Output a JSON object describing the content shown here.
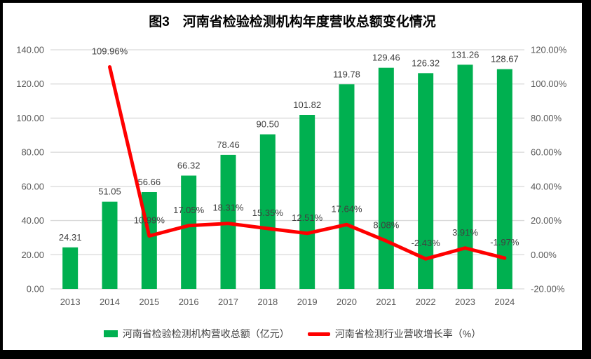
{
  "chart_data": {
    "type": "bar+line",
    "title": "图3　河南省检验检测机构年度营收总额变化情况",
    "categories": [
      "2013",
      "2014",
      "2015",
      "2016",
      "2017",
      "2018",
      "2019",
      "2020",
      "2021",
      "2022",
      "2023",
      "2024"
    ],
    "series": [
      {
        "name": "河南省检验检测机构营收总额（亿元）",
        "type": "bar",
        "axis": "left",
        "color": "#00B050",
        "values": [
          24.31,
          51.05,
          56.66,
          66.32,
          78.46,
          90.5,
          101.82,
          119.78,
          129.46,
          126.32,
          131.26,
          128.67
        ],
        "labels": [
          "24.31",
          "51.05",
          "56.66",
          "66.32",
          "78.46",
          "90.50",
          "101.82",
          "119.78",
          "129.46",
          "126.32",
          "131.26",
          "128.67"
        ]
      },
      {
        "name": "河南省检测行业营收增长率（%）",
        "type": "line",
        "axis": "right",
        "color": "#FF0000",
        "values": [
          null,
          109.96,
          10.99,
          17.05,
          18.31,
          15.35,
          12.51,
          17.64,
          8.08,
          -2.43,
          3.91,
          -1.97
        ],
        "labels": [
          null,
          "109.96%",
          "10.99%",
          "17.05%",
          "18.31%",
          "15.35%",
          "12.51%",
          "17.64%",
          "8.08%",
          "-2.43%",
          "3.91%",
          "-1.97%"
        ]
      }
    ],
    "left_axis": {
      "min": 0,
      "max": 140,
      "step": 20,
      "tick_values": [
        0,
        20,
        40,
        60,
        80,
        100,
        120,
        140
      ],
      "ticks": [
        "0.00",
        "20.00",
        "40.00",
        "60.00",
        "80.00",
        "100.00",
        "120.00",
        "140.00"
      ]
    },
    "right_axis": {
      "min": -20,
      "max": 120,
      "step": 20,
      "tick_values": [
        -20,
        0,
        20,
        40,
        60,
        80,
        100,
        120
      ],
      "ticks": [
        "-20.00%",
        "0.00%",
        "20.00%",
        "40.00%",
        "60.00%",
        "80.00%",
        "100.00%",
        "120.00%"
      ]
    },
    "grid": true,
    "legend_position": "bottom",
    "colors": {
      "grid": "#D9D9D9",
      "axis_text": "#595959",
      "data_label": "#404040",
      "title_text": "#000000",
      "frame": "#000000",
      "background": "#FFFFFF"
    }
  }
}
